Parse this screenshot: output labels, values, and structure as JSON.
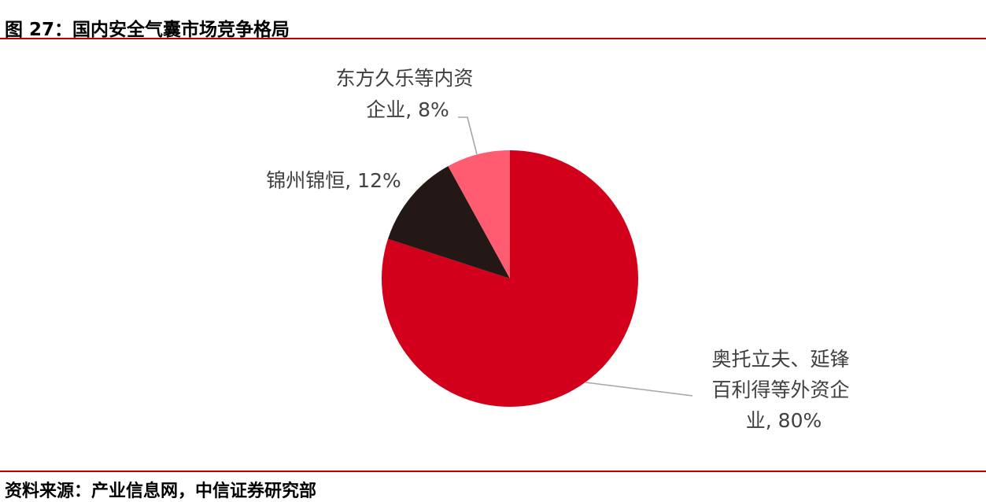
{
  "figure": {
    "title": "图 27：国内安全气囊市场竞争格局",
    "source": "资料来源：产业信息网，中信证券研究部"
  },
  "colors": {
    "rule": "#c00000",
    "leader": "#a6a6a6",
    "label_text": "#404040"
  },
  "chart_data": {
    "type": "pie",
    "title": "",
    "start_angle_deg": 0,
    "direction": "clockwise",
    "slices": [
      {
        "label_lines": [
          "奥托立夫、延锋",
          "百利得等外资企",
          "业, 80%"
        ],
        "value": 80,
        "color": "#d2001a"
      },
      {
        "label_lines": [
          "锦州锦恒, 12%"
        ],
        "value": 12,
        "color": "#231815"
      },
      {
        "label_lines": [
          "东方久乐等内资",
          "企业, 8%"
        ],
        "value": 8,
        "color": "#ff5c71"
      }
    ]
  }
}
